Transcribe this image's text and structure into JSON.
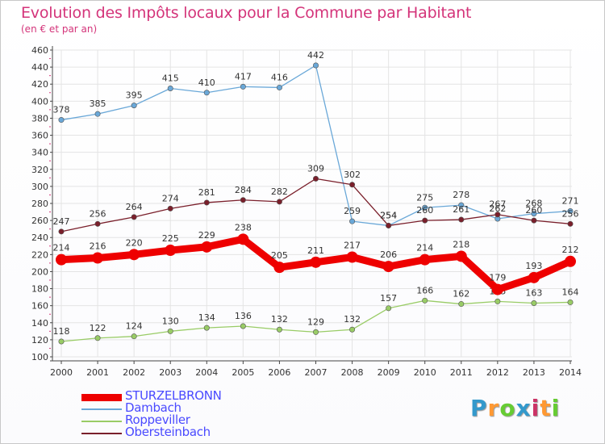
{
  "header": {
    "title": "Evolution des Impôts locaux pour la Commune par Habitant",
    "subtitle": "(en € et par an)"
  },
  "logo": {
    "text": "Proxiti",
    "letters": [
      "P",
      "r",
      "o",
      "x",
      "i",
      "t",
      "i"
    ],
    "colors": [
      "#3399cc",
      "#ff9933",
      "#66cc33",
      "#3399cc",
      "#cc3366",
      "#ff9933",
      "#66cc33"
    ]
  },
  "chart_data": {
    "type": "line",
    "title": "Evolution des Impôts locaux pour la Commune par Habitant",
    "subtitle": "(en € et par an)",
    "x": [
      "2000",
      "2001",
      "2002",
      "2003",
      "2004",
      "2005",
      "2006",
      "2007",
      "2008",
      "2009",
      "2010",
      "2011",
      "2012",
      "2013",
      "2014"
    ],
    "ylim": [
      100,
      460
    ],
    "yticks": [
      "100",
      "120",
      "140",
      "160",
      "180",
      "200",
      "220",
      "240",
      "260",
      "280",
      "300",
      "320",
      "340",
      "360",
      "380",
      "400",
      "420",
      "440",
      "460"
    ],
    "grid": true,
    "legend_position": "bottom-left",
    "series": [
      {
        "name": "Dambach",
        "color": "#6aa8d8",
        "values": [
          378,
          385,
          395,
          415,
          410,
          417,
          416,
          442,
          259,
          254,
          275,
          278,
          262,
          268,
          271
        ],
        "labels": [
          "378",
          "385",
          "395",
          "415",
          "410",
          "417",
          "416",
          "442",
          "259",
          "254",
          "275",
          "278",
          "262",
          "268",
          "271"
        ]
      },
      {
        "name": "Obersteinbach",
        "color": "#7a1f2b",
        "values": [
          247,
          256,
          264,
          274,
          281,
          284,
          282,
          309,
          302,
          254,
          260,
          261,
          267,
          260,
          256
        ],
        "labels": [
          "247",
          "256",
          "264",
          "274",
          "281",
          "284",
          "282",
          "309",
          "302",
          "254",
          "260",
          "261",
          "267",
          "260",
          "256"
        ]
      },
      {
        "name": "Roppeviller",
        "color": "#99cc66",
        "values": [
          118,
          122,
          124,
          130,
          134,
          136,
          132,
          129,
          132,
          157,
          166,
          162,
          165,
          163,
          164
        ],
        "labels": [
          "118",
          "122",
          "124",
          "130",
          "134",
          "136",
          "132",
          "129",
          "132",
          "157",
          "166",
          "162",
          "165",
          "163",
          "164"
        ]
      },
      {
        "name": "STURZELBRONN",
        "color": "#ee0000",
        "values": [
          214,
          216,
          220,
          225,
          229,
          238,
          205,
          211,
          217,
          206,
          214,
          218,
          179,
          193,
          212
        ],
        "labels": [
          "214",
          "216",
          "220",
          "225",
          "229",
          "238",
          "205",
          "211",
          "217",
          "206",
          "214",
          "218",
          "179",
          "193",
          "212"
        ]
      }
    ],
    "legend": [
      {
        "name": "STURZELBRONN",
        "color": "#ee0000"
      },
      {
        "name": "Dambach",
        "color": "#6aa8d8"
      },
      {
        "name": "Roppeviller",
        "color": "#99cc66"
      },
      {
        "name": "Obersteinbach",
        "color": "#7a1f2b"
      }
    ]
  }
}
